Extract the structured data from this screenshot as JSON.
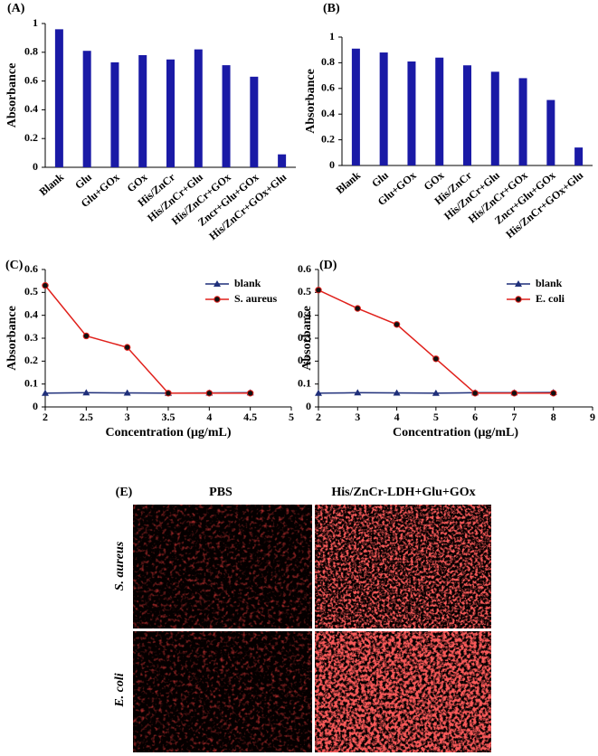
{
  "chart_data": [
    {
      "type": "bar",
      "title": "(A)",
      "y_label": "Absorbance",
      "color": "#1a1aa6",
      "categories": [
        "Blank",
        "Glu",
        "Glu+GOx",
        "GOx",
        "His/ZnCr",
        "His/ZnCr+Glu",
        "His/ZnCr+GOx",
        "Zncr+Glu+GOx",
        "His/ZnCr+GOx+Glu"
      ],
      "values": [
        0.96,
        0.81,
        0.73,
        0.78,
        0.75,
        0.82,
        0.71,
        0.63,
        0.09
      ],
      "ylim": [
        0,
        1
      ],
      "yticks": [
        0,
        0.2,
        0.4,
        0.6,
        0.8,
        1
      ]
    },
    {
      "type": "bar",
      "title": "(B)",
      "y_label": "Absorbance",
      "color": "#1a1aa6",
      "categories": [
        "Blank",
        "Glu",
        "Glu+GOx",
        "GOx",
        "His/ZnCr",
        "His/ZnCr+Glu",
        "His/ZnCr+GOx",
        "Zncr+Glu+GOx",
        "His/ZnCr+GOx+Glu"
      ],
      "values": [
        0.91,
        0.88,
        0.81,
        0.84,
        0.78,
        0.73,
        0.68,
        0.51,
        0.14
      ],
      "ylim": [
        0,
        1
      ],
      "yticks": [
        0,
        0.2,
        0.4,
        0.6,
        0.8,
        1
      ]
    },
    {
      "type": "line",
      "title": "(C)",
      "x_label": "Concentration (μg/mL)",
      "y_label": "Absorbance",
      "legend": "upper right",
      "x": [
        2,
        2.5,
        3,
        3.5,
        4,
        4.5
      ],
      "series": [
        {
          "name": "blank",
          "color": "#1f2f7a",
          "marker": "triangle",
          "values": [
            0.06,
            0.062,
            0.061,
            0.06,
            0.061,
            0.062
          ]
        },
        {
          "name": "S. aureus",
          "color": "#e0201b",
          "marker": "circle",
          "values": [
            0.53,
            0.31,
            0.26,
            0.06,
            0.06,
            0.06
          ]
        }
      ],
      "xlim": [
        2,
        5
      ],
      "xticks": [
        2,
        2.5,
        3,
        3.5,
        4,
        4.5,
        5
      ],
      "ylim": [
        0,
        0.6
      ],
      "yticks": [
        0,
        0.1,
        0.2,
        0.3,
        0.4,
        0.5,
        0.6
      ]
    },
    {
      "type": "line",
      "title": "(D)",
      "x_label": "Concentration (μg/mL)",
      "y_label": "Absorbance",
      "legend": "upper right",
      "x": [
        2,
        3,
        4,
        5,
        6,
        7,
        8
      ],
      "series": [
        {
          "name": "blank",
          "color": "#1f2f7a",
          "marker": "triangle",
          "values": [
            0.06,
            0.062,
            0.061,
            0.06,
            0.062,
            0.062,
            0.063
          ]
        },
        {
          "name": "E. coli",
          "color": "#e0201b",
          "marker": "circle",
          "values": [
            0.51,
            0.43,
            0.36,
            0.21,
            0.06,
            0.06,
            0.06
          ]
        }
      ],
      "xlim": [
        2,
        9
      ],
      "xticks": [
        2,
        3,
        4,
        5,
        6,
        7,
        8,
        9
      ],
      "ylim": [
        0,
        0.6
      ],
      "yticks": [
        0,
        0.1,
        0.2,
        0.3,
        0.4,
        0.5,
        0.6
      ]
    }
  ],
  "panel_e": {
    "title": "(E)",
    "columns": [
      "PBS",
      "His/ZnCr-LDH+Glu+GOx"
    ],
    "rows": [
      "S. aureus",
      "E. coli"
    ]
  }
}
